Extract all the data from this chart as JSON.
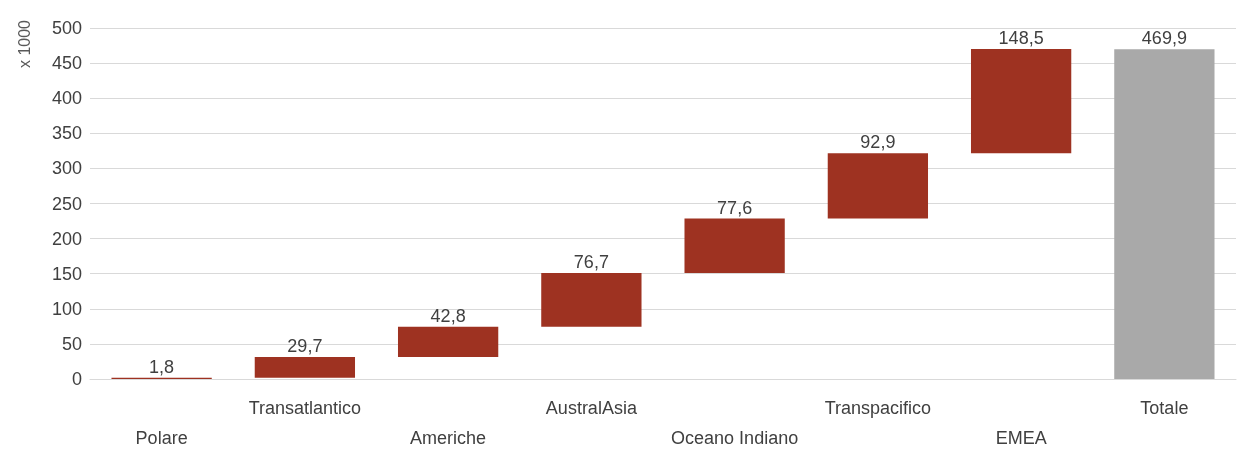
{
  "chart_data": {
    "type": "bar",
    "ylabel": "x 1000",
    "categories": [
      "Polare",
      "Transatlantico",
      "Americhe",
      "AustralAsia",
      "Oceano Indiano",
      "Transpacifico",
      "EMEA",
      "Totale"
    ],
    "values": [
      1.8,
      29.7,
      42.8,
      76.7,
      77.6,
      92.9,
      148.5,
      469.9
    ],
    "base": [
      0,
      1.8,
      31.5,
      74.3,
      151,
      228.6,
      321.5,
      0
    ],
    "colors": [
      "#9e3221",
      "#9e3221",
      "#9e3221",
      "#9e3221",
      "#9e3221",
      "#9e3221",
      "#9e3221",
      "#a9a9a9"
    ],
    "value_labels": [
      "1,8",
      "29,7",
      "42,8",
      "76,7",
      "77,6",
      "92,9",
      "148,5",
      "469,9"
    ],
    "ylim": [
      0,
      500
    ],
    "yticks": [
      0,
      50,
      100,
      150,
      200,
      250,
      300,
      350,
      400,
      450,
      500
    ],
    "grid": "y"
  }
}
